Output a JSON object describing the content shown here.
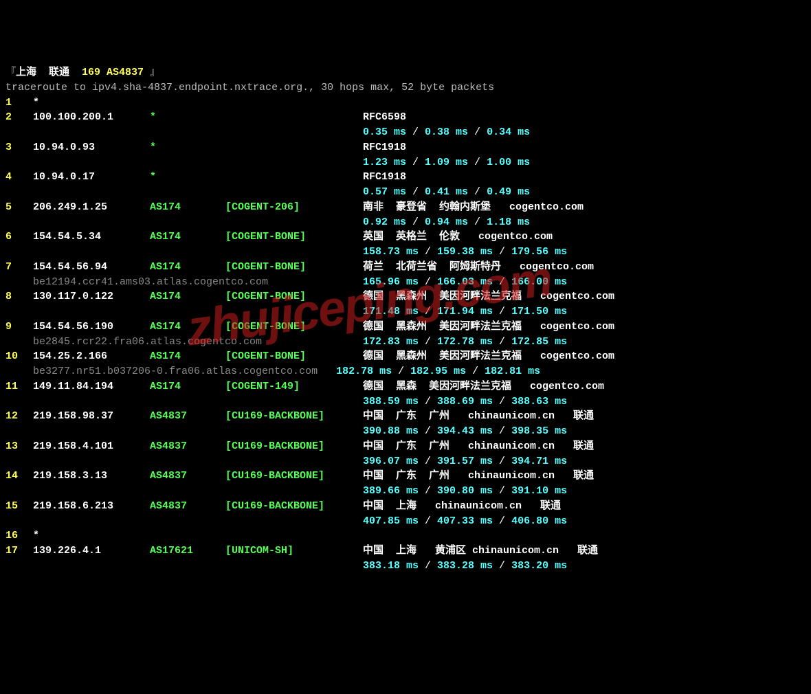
{
  "header": {
    "bracket_open": "『",
    "location": "上海  联通",
    "asn_text": "169 AS4837",
    "bracket_close": " 』",
    "traceroute_line": "traceroute to ipv4.sha-4837.endpoint.nxtrace.org., 30 hops max, 52 byte packets"
  },
  "watermark": "zhujiceping.com",
  "hops": [
    {
      "n": "1",
      "ip": "*",
      "asn": "",
      "tag": "",
      "loc": "",
      "lat": []
    },
    {
      "n": "2",
      "ip": "100.100.200.1",
      "asn": "*",
      "tag": "",
      "loc": "RFC6598",
      "lat": [
        "0.35 ms",
        "0.38 ms",
        "0.34 ms"
      ]
    },
    {
      "n": "3",
      "ip": "10.94.0.93",
      "asn": "*",
      "tag": "",
      "loc": "RFC1918",
      "lat": [
        "1.23 ms",
        "1.09 ms",
        "1.00 ms"
      ]
    },
    {
      "n": "4",
      "ip": "10.94.0.17",
      "asn": "*",
      "tag": "",
      "loc": "RFC1918",
      "lat": [
        "0.57 ms",
        "0.41 ms",
        "0.49 ms"
      ]
    },
    {
      "n": "5",
      "ip": "206.249.1.25",
      "asn": "AS174",
      "tag": "[COGENT-206]",
      "loc": "南非  豪登省  约翰内斯堡   cogentco.com",
      "lat": [
        "0.92 ms",
        "0.94 ms",
        "1.18 ms"
      ]
    },
    {
      "n": "6",
      "ip": "154.54.5.34",
      "asn": "AS174",
      "tag": "[COGENT-BONE]",
      "loc": "英国  英格兰  伦敦   cogentco.com",
      "lat": [
        "158.73 ms",
        "159.38 ms",
        "179.56 ms"
      ]
    },
    {
      "n": "7",
      "ip": "154.54.56.94",
      "asn": "AS174",
      "tag": "[COGENT-BONE]",
      "loc": "荷兰  北荷兰省  阿姆斯特丹   cogentco.com",
      "lat": [
        "165.96 ms",
        "166.03 ms",
        "166.00 ms"
      ],
      "host": "be12194.ccr41.ams03.atlas.cogentco.com"
    },
    {
      "n": "8",
      "ip": "130.117.0.122",
      "asn": "AS174",
      "tag": "[COGENT-BONE]",
      "loc": "德国  黑森州  美因河畔法兰克福   cogentco.com",
      "lat": [
        "171.48 ms",
        "171.94 ms",
        "171.50 ms"
      ]
    },
    {
      "n": "9",
      "ip": "154.54.56.190",
      "asn": "AS174",
      "tag": "[COGENT-BONE]",
      "loc": "德国  黑森州  美因河畔法兰克福   cogentco.com",
      "lat": [
        "172.83 ms",
        "172.78 ms",
        "172.85 ms"
      ],
      "host": "be2845.rcr22.fra06.atlas.cogentco.com"
    },
    {
      "n": "10",
      "ip": "154.25.2.166",
      "asn": "AS174",
      "tag": "[COGENT-BONE]",
      "loc": "德国  黑森州  美因河畔法兰克福   cogentco.com",
      "lat": [
        "182.78 ms",
        "182.95 ms",
        "182.81 ms"
      ],
      "host": "be3277.nr51.b037206-0.fra06.atlas.cogentco.com",
      "lat_indent": true
    },
    {
      "n": "11",
      "ip": "149.11.84.194",
      "asn": "AS174",
      "tag": "[COGENT-149]",
      "loc": "德国  黑森  美因河畔法兰克福   cogentco.com",
      "lat": [
        "388.59 ms",
        "388.69 ms",
        "388.63 ms"
      ]
    },
    {
      "n": "12",
      "ip": "219.158.98.37",
      "asn": "AS4837",
      "tag": "[CU169-BACKBONE]",
      "loc": "中国  广东  广州   chinaunicom.cn   联通",
      "lat": [
        "390.88 ms",
        "394.43 ms",
        "398.35 ms"
      ]
    },
    {
      "n": "13",
      "ip": "219.158.4.101",
      "asn": "AS4837",
      "tag": "[CU169-BACKBONE]",
      "loc": "中国  广东  广州   chinaunicom.cn   联通",
      "lat": [
        "396.07 ms",
        "391.57 ms",
        "394.71 ms"
      ]
    },
    {
      "n": "14",
      "ip": "219.158.3.13",
      "asn": "AS4837",
      "tag": "[CU169-BACKBONE]",
      "loc": "中国  广东  广州   chinaunicom.cn   联通",
      "lat": [
        "389.66 ms",
        "390.80 ms",
        "391.10 ms"
      ]
    },
    {
      "n": "15",
      "ip": "219.158.6.213",
      "asn": "AS4837",
      "tag": "[CU169-BACKBONE]",
      "loc": "中国  上海   chinaunicom.cn   联通",
      "lat": [
        "407.85 ms",
        "407.33 ms",
        "406.80 ms"
      ]
    },
    {
      "n": "16",
      "ip": "*",
      "asn": "",
      "tag": "",
      "loc": "",
      "lat": []
    },
    {
      "n": "17",
      "ip": "139.226.4.1",
      "asn": "AS17621",
      "tag": "[UNICOM-SH]",
      "loc": "中国  上海   黄浦区 chinaunicom.cn   联通",
      "lat": [
        "383.18 ms",
        "383.28 ms",
        "383.20 ms"
      ]
    }
  ]
}
